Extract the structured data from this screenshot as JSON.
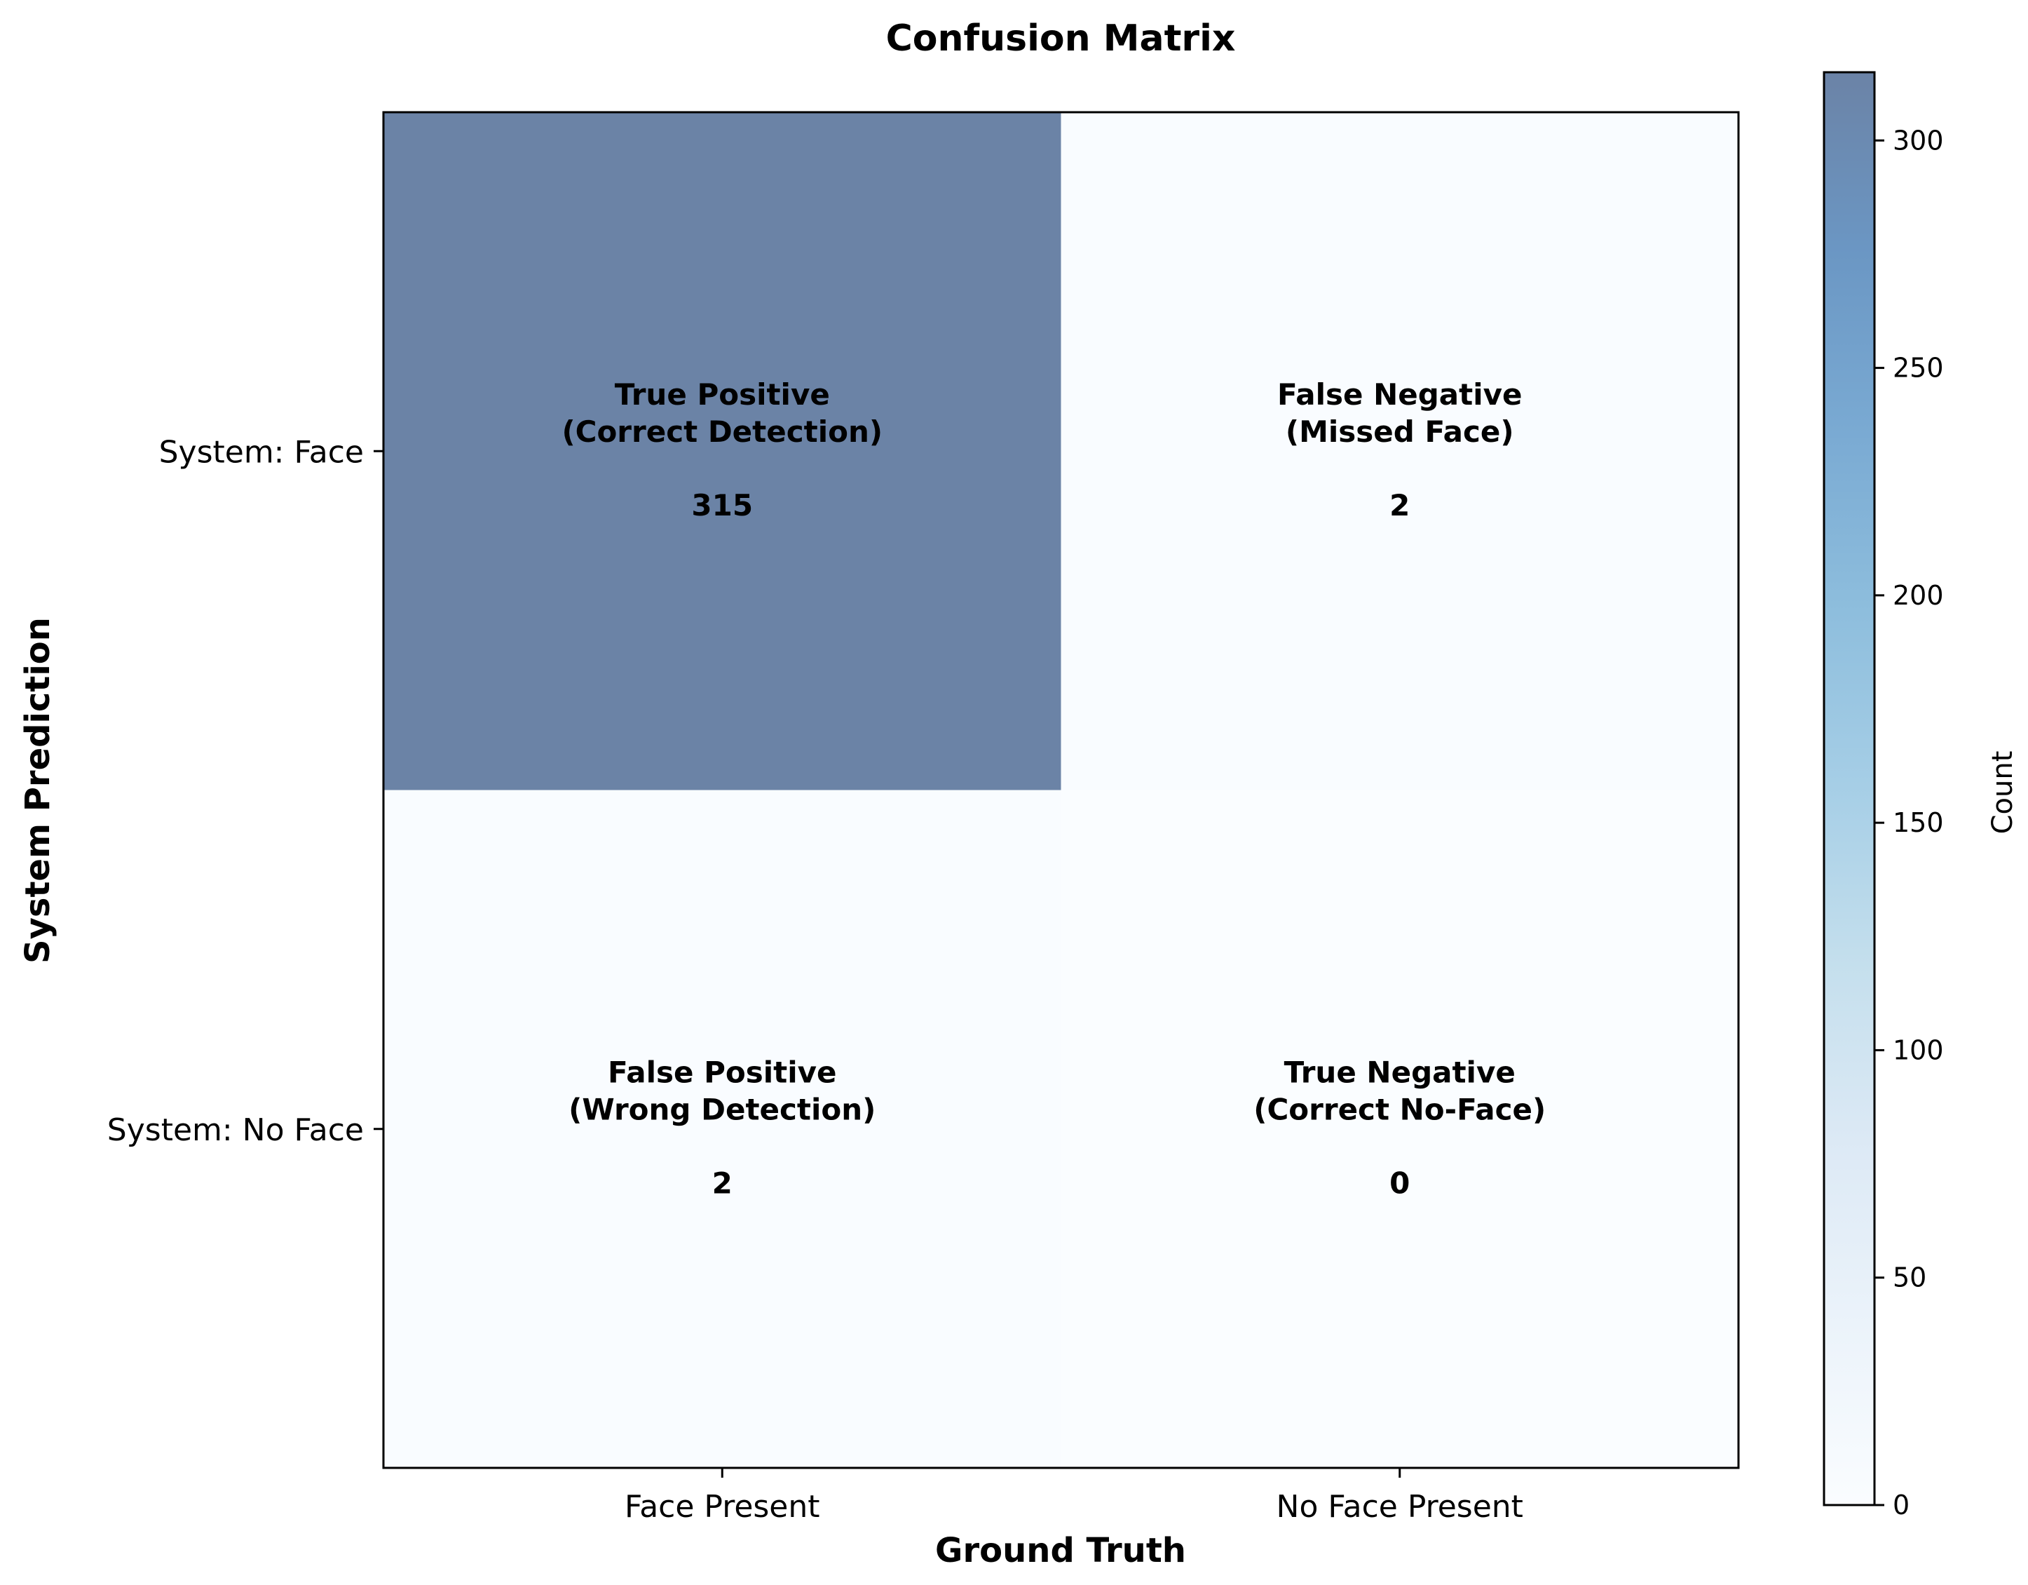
{
  "chart_data": {
    "type": "heatmap",
    "title": "Confusion Matrix",
    "xlabel": "Ground Truth",
    "ylabel": "System Prediction",
    "x_categories": [
      "Face Present",
      "No Face Present"
    ],
    "y_categories": [
      "System: Face",
      "System: No Face"
    ],
    "cells": [
      {
        "row": 0,
        "col": 0,
        "label_line1": "True Positive",
        "label_line2": "(Correct Detection)",
        "value": 315,
        "display": "315"
      },
      {
        "row": 0,
        "col": 1,
        "label_line1": "False Negative",
        "label_line2": "(Missed Face)",
        "value": 2,
        "display": "2"
      },
      {
        "row": 1,
        "col": 0,
        "label_line1": "False Positive",
        "label_line2": "(Wrong Detection)",
        "value": 2,
        "display": "2"
      },
      {
        "row": 1,
        "col": 1,
        "label_line1": "True Negative",
        "label_line2": "(Correct No-Face)",
        "value": 0,
        "display": "0"
      }
    ],
    "colorbar": {
      "label": "Count",
      "min": 0,
      "max": 315,
      "ticks": [
        0,
        50,
        100,
        150,
        200,
        250,
        300
      ],
      "tick_labels": [
        "0",
        "50",
        "100",
        "150",
        "200",
        "250",
        "300"
      ],
      "colormap": "Blues",
      "alpha": 0.6
    },
    "grid": false
  }
}
